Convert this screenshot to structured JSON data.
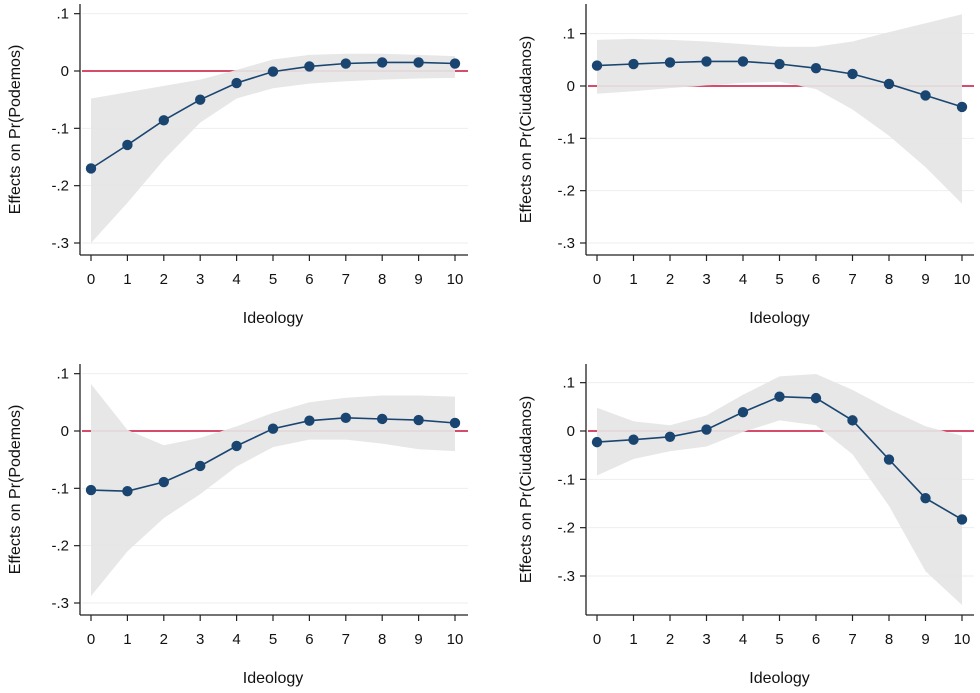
{
  "figure": {
    "style": {
      "marker_color": "#1a4570",
      "line_color": "#1a4570",
      "band_color": "#e5e5e5",
      "reference_line_color": "#c8103a",
      "grid_color": "#eeeeee",
      "axis_color": "#222222"
    }
  },
  "chart_data": [
    {
      "type": "line",
      "panel": "top-left",
      "title": "",
      "xlabel": "Ideology",
      "ylabel": "Effects on Pr(Podemos)",
      "x": [
        0,
        1,
        2,
        3,
        4,
        5,
        6,
        7,
        8,
        9,
        10
      ],
      "x_tick_labels": [
        "0",
        "1",
        "2",
        "3",
        "4",
        "5",
        "6",
        "7",
        "8",
        "9",
        "10"
      ],
      "y_ticks": [
        0.1,
        0,
        -0.1,
        -0.2,
        -0.3
      ],
      "y_tick_labels": [
        ".1",
        "0",
        "-.1",
        "-.2",
        "-.3"
      ],
      "ylim": [
        -0.32,
        0.12
      ],
      "grid": true,
      "reference_line": 0,
      "series": [
        {
          "name": "Effect",
          "values": [
            -0.17,
            -0.129,
            -0.086,
            -0.05,
            -0.021,
            -0.001,
            0.008,
            0.013,
            0.015,
            0.015,
            0.013
          ]
        },
        {
          "name": "CI upper",
          "values": [
            -0.048,
            -0.037,
            -0.026,
            -0.015,
            0.002,
            0.02,
            0.028,
            0.03,
            0.03,
            0.028,
            0.026
          ]
        },
        {
          "name": "CI lower",
          "values": [
            -0.3,
            -0.23,
            -0.155,
            -0.09,
            -0.048,
            -0.03,
            -0.022,
            -0.018,
            -0.015,
            -0.013,
            -0.012
          ]
        }
      ]
    },
    {
      "type": "line",
      "panel": "top-right",
      "title": "",
      "xlabel": "Ideology",
      "ylabel": "Effects on Pr(Ciudadanos)",
      "x": [
        0,
        1,
        2,
        3,
        4,
        5,
        6,
        7,
        8,
        9,
        10
      ],
      "x_tick_labels": [
        "0",
        "1",
        "2",
        "3",
        "4",
        "5",
        "6",
        "7",
        "8",
        "9",
        "10"
      ],
      "y_ticks": [
        0.1,
        0,
        -0.1,
        -0.2,
        -0.3
      ],
      "y_tick_labels": [
        ".1",
        "0",
        "-.1",
        "-.2",
        "-.3"
      ],
      "ylim": [
        -0.32,
        0.15
      ],
      "grid": true,
      "reference_line": 0,
      "series": [
        {
          "name": "Effect",
          "values": [
            0.039,
            0.042,
            0.045,
            0.047,
            0.047,
            0.042,
            0.034,
            0.023,
            0.004,
            -0.018,
            -0.04
          ]
        },
        {
          "name": "CI upper",
          "values": [
            0.088,
            0.09,
            0.088,
            0.085,
            0.08,
            0.075,
            0.075,
            0.085,
            0.103,
            0.12,
            0.137
          ]
        },
        {
          "name": "CI lower",
          "values": [
            -0.015,
            -0.01,
            -0.004,
            0.001,
            0.006,
            0.008,
            -0.006,
            -0.045,
            -0.095,
            -0.155,
            -0.225
          ]
        }
      ]
    },
    {
      "type": "line",
      "panel": "bottom-left",
      "title": "",
      "xlabel": "Ideology",
      "ylabel": "Effects on Pr(Podemos)",
      "x": [
        0,
        1,
        2,
        3,
        4,
        5,
        6,
        7,
        8,
        9,
        10
      ],
      "x_tick_labels": [
        "0",
        "1",
        "2",
        "3",
        "4",
        "5",
        "6",
        "7",
        "8",
        "9",
        "10"
      ],
      "y_ticks": [
        0.1,
        0,
        -0.1,
        -0.2,
        -0.3
      ],
      "y_tick_labels": [
        ".1",
        "0",
        "-.1",
        "-.2",
        "-.3"
      ],
      "ylim": [
        -0.32,
        0.12
      ],
      "grid": true,
      "reference_line": 0,
      "series": [
        {
          "name": "Effect",
          "values": [
            -0.103,
            -0.105,
            -0.089,
            -0.061,
            -0.026,
            0.004,
            0.018,
            0.023,
            0.021,
            0.019,
            0.014
          ]
        },
        {
          "name": "CI upper",
          "values": [
            0.082,
            0.002,
            -0.025,
            -0.012,
            0.008,
            0.032,
            0.05,
            0.058,
            0.062,
            0.062,
            0.06
          ]
        },
        {
          "name": "CI lower",
          "values": [
            -0.288,
            -0.21,
            -0.152,
            -0.11,
            -0.062,
            -0.028,
            -0.015,
            -0.015,
            -0.022,
            -0.032,
            -0.035
          ]
        }
      ]
    },
    {
      "type": "line",
      "panel": "bottom-right",
      "title": "",
      "xlabel": "Ideology",
      "ylabel": "Effects on Pr(Ciudadanos)",
      "x": [
        0,
        1,
        2,
        3,
        4,
        5,
        6,
        7,
        8,
        9,
        10
      ],
      "x_tick_labels": [
        "0",
        "1",
        "2",
        "3",
        "4",
        "5",
        "6",
        "7",
        "8",
        "9",
        "10"
      ],
      "y_ticks": [
        0.1,
        0,
        -0.1,
        -0.2,
        -0.3
      ],
      "y_tick_labels": [
        ".1",
        "0",
        "-.1",
        "-.2",
        "-.3"
      ],
      "ylim": [
        -0.38,
        0.13
      ],
      "grid": true,
      "reference_line": 0,
      "series": [
        {
          "name": "Effect",
          "values": [
            -0.023,
            -0.018,
            -0.012,
            0.003,
            0.039,
            0.071,
            0.068,
            0.022,
            -0.059,
            -0.139,
            -0.183
          ]
        },
        {
          "name": "CI upper",
          "values": [
            0.048,
            0.02,
            0.012,
            0.032,
            0.075,
            0.113,
            0.118,
            0.085,
            0.045,
            0.01,
            -0.01
          ]
        },
        {
          "name": "CI lower",
          "values": [
            -0.092,
            -0.058,
            -0.042,
            -0.032,
            -0.002,
            0.022,
            0.012,
            -0.048,
            -0.155,
            -0.29,
            -0.36
          ]
        }
      ]
    }
  ]
}
